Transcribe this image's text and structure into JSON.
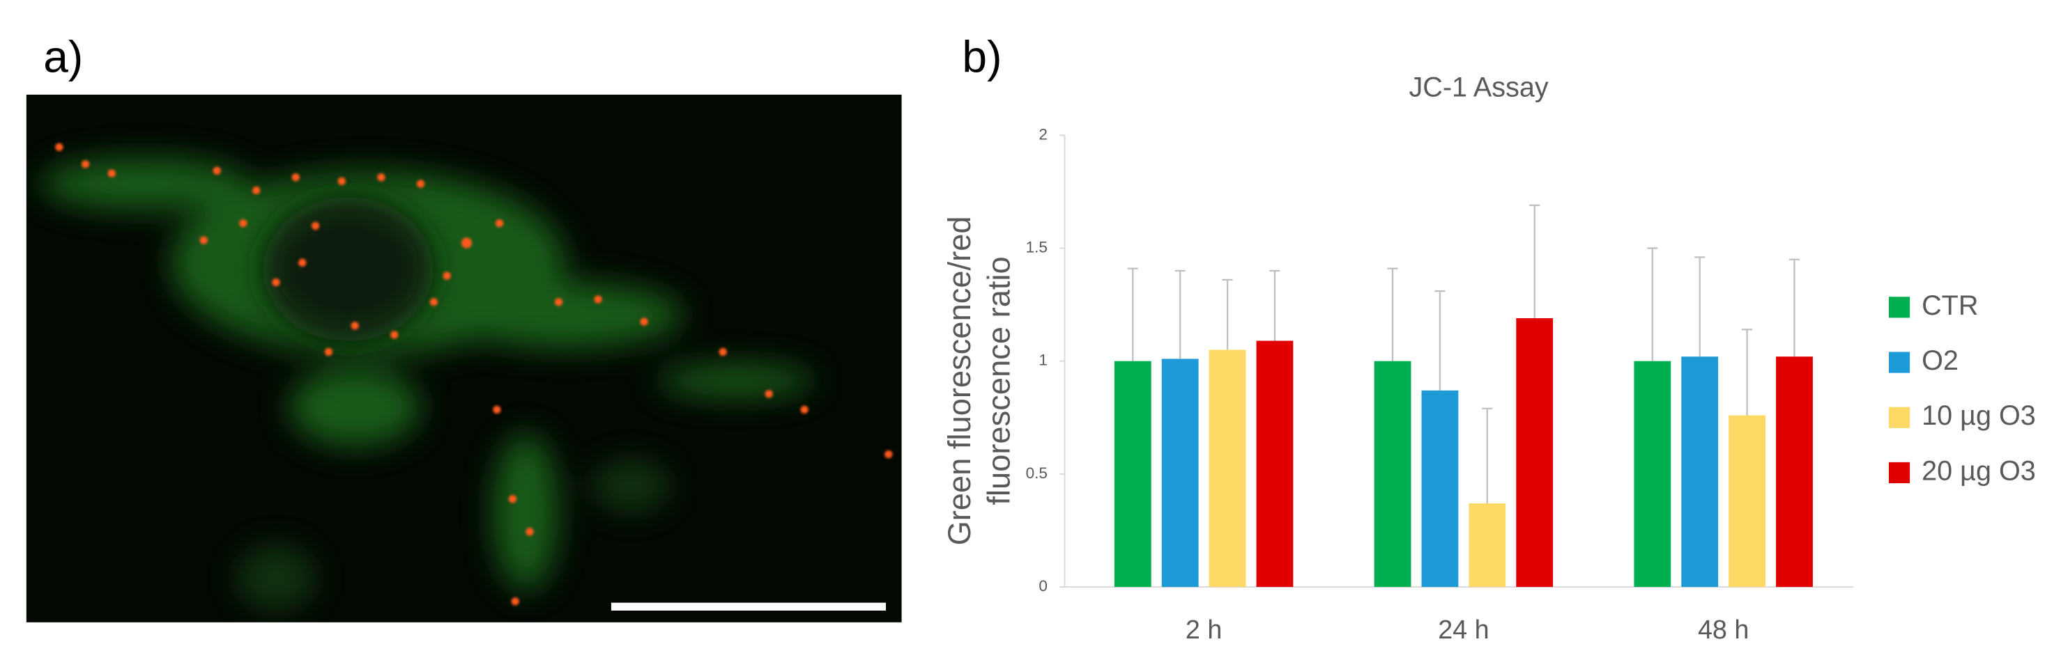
{
  "panel_labels": [
    "a)",
    "b)"
  ],
  "chart_data": {
    "type": "bar",
    "title": "JC-1 Assay",
    "y_label": "Green fluorescence/red fluorescence ratio",
    "categories": [
      "2 h",
      "24 h",
      "48 h"
    ],
    "series": [
      {
        "name": "CTR",
        "color": "#00b050",
        "values": [
          1.0,
          1.0,
          1.0
        ],
        "errors": [
          0.41,
          0.41,
          0.5
        ]
      },
      {
        "name": "O2",
        "color": "#1e9bd7",
        "values": [
          1.01,
          0.87,
          1.02
        ],
        "errors": [
          0.39,
          0.44,
          0.44
        ]
      },
      {
        "name": "10 µg O3",
        "color": "#ffd966",
        "values": [
          1.05,
          0.37,
          0.76
        ],
        "errors": [
          0.31,
          0.42,
          0.38
        ]
      },
      {
        "name": "20 µg O3",
        "color": "#e00000",
        "values": [
          1.09,
          1.19,
          1.02
        ],
        "errors": [
          0.31,
          0.5,
          0.43
        ]
      }
    ],
    "ylim": [
      0,
      2
    ],
    "yticks": [
      0,
      0.5,
      1,
      1.5,
      2
    ],
    "legend": "right"
  }
}
